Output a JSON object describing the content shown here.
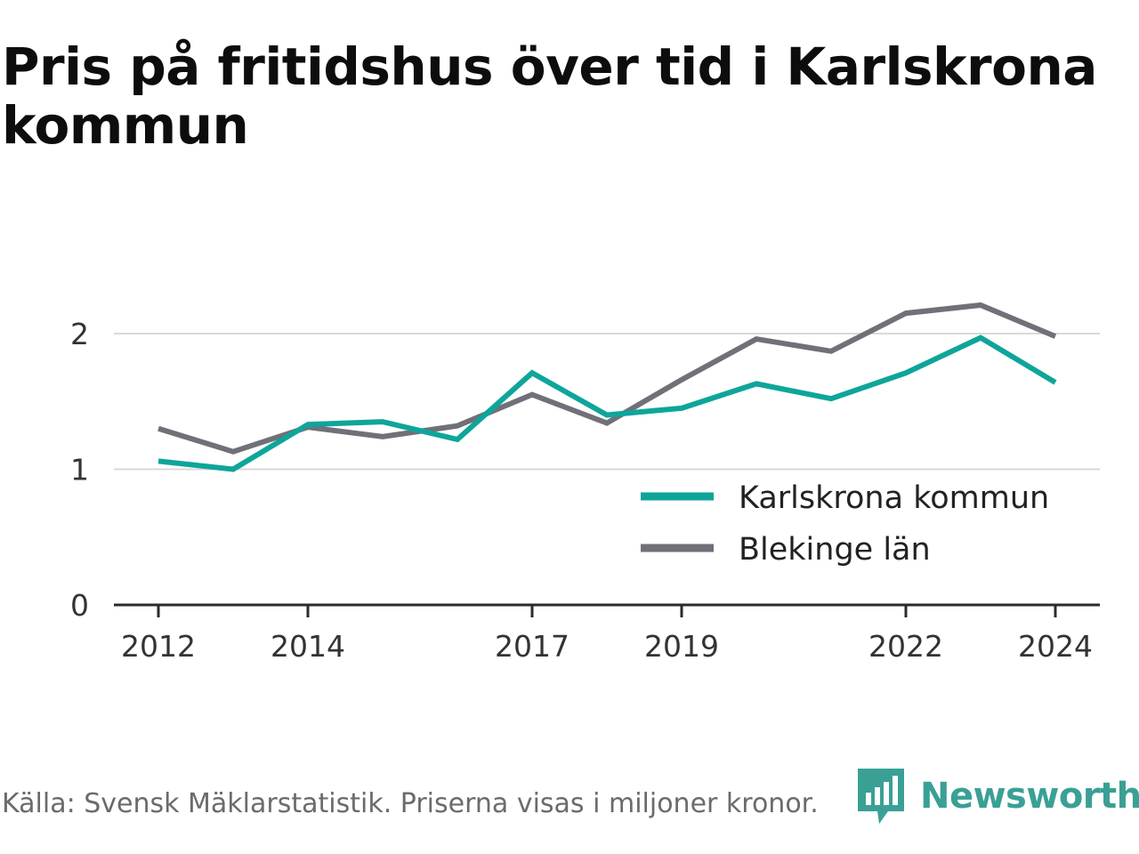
{
  "title": "Pris på fritidshus över tid i Karlskrona kommun",
  "footer": {
    "source": "Källa: Svensk Mäklarstatistik. Priserna visas i miljoner kronor.",
    "brand": "Newsworthy",
    "brand_color": "#3aa095",
    "logo_icon": "newsworthy-logo-icon"
  },
  "chart_data": {
    "type": "line",
    "title": "Pris på fritidshus över tid i Karlskrona kommun",
    "xlabel": "",
    "ylabel": "",
    "x": [
      2012,
      2013,
      2014,
      2015,
      2016,
      2017,
      2018,
      2019,
      2020,
      2021,
      2022,
      2023,
      2024
    ],
    "x_ticks": [
      "2012",
      "2014",
      "2017",
      "2019",
      "2022",
      "2024"
    ],
    "y_ticks": [
      "0",
      "1",
      "2"
    ],
    "ylim": [
      0,
      2.2
    ],
    "grid": true,
    "legend_position": "bottom-right",
    "series": [
      {
        "name": "Karlskrona kommun",
        "color": "#0ea59a",
        "values": [
          1.06,
          1.0,
          1.33,
          1.35,
          1.22,
          1.71,
          1.4,
          1.45,
          1.63,
          1.52,
          1.71,
          1.97,
          1.64
        ]
      },
      {
        "name": "Blekinge län",
        "color": "#717078",
        "values": [
          1.3,
          1.13,
          1.31,
          1.24,
          1.32,
          1.55,
          1.34,
          1.66,
          1.96,
          1.87,
          2.15,
          2.21,
          1.98
        ]
      }
    ]
  }
}
